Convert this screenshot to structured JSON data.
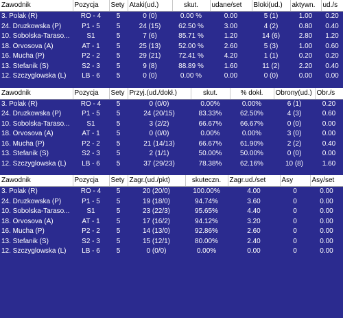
{
  "table1": {
    "headers": [
      "Zawodnik",
      "Pozycja",
      "Sety",
      "Ataki(ud.)",
      "skut.",
      "udane/set",
      "Bloki(ud.)",
      "aktywn.",
      "ud./s"
    ],
    "rows": [
      [
        "3. Polak (R)",
        "RO - 4",
        "5",
        "0 (0)",
        "0.00 %",
        "0.00",
        "5 (1)",
        "1.00",
        "0.20"
      ],
      [
        "24. Druzkowska (P)",
        "P1 - 5",
        "5",
        "24 (15)",
        "62.50 %",
        "3.00",
        "4 (2)",
        "0.80",
        "0.40"
      ],
      [
        "10. Sobolska-Taraso...",
        "S1",
        "5",
        "7 (6)",
        "85.71 %",
        "1.20",
        "14 (6)",
        "2.80",
        "1.20"
      ],
      [
        "18. Orvosova (A)",
        "AT - 1",
        "5",
        "25 (13)",
        "52.00 %",
        "2.60",
        "5 (3)",
        "1.00",
        "0.60"
      ],
      [
        "16. Mucha (P)",
        "P2 - 2",
        "5",
        "29 (21)",
        "72.41 %",
        "4.20",
        "1 (1)",
        "0.20",
        "0.20"
      ],
      [
        "13. Stefanik (S)",
        "S2 - 3",
        "5",
        "9 (8)",
        "88.89 %",
        "1.60",
        "11 (2)",
        "2.20",
        "0.40"
      ],
      [
        "12. Szczyglowska (L)",
        "LB - 6",
        "5",
        "0 (0)",
        "0.00 %",
        "0.00",
        "0 (0)",
        "0.00",
        "0.00"
      ]
    ]
  },
  "table2": {
    "headers": [
      "Zawodnik",
      "Pozycja",
      "Sety",
      "Przyj.(ud./dokł.)",
      "skut.",
      "% dokł.",
      "Obrony(ud.)",
      "Obr./s"
    ],
    "rows": [
      [
        "3. Polak (R)",
        "RO - 4",
        "5",
        "0 (0/0)",
        "0.00%",
        "0.00%",
        "6 (1)",
        "0.20"
      ],
      [
        "24. Druzkowska (P)",
        "P1 - 5",
        "5",
        "24 (20/15)",
        "83.33%",
        "62.50%",
        "4 (3)",
        "0.60"
      ],
      [
        "10. Sobolska-Taraso...",
        "S1",
        "5",
        "3 (2/2)",
        "66.67%",
        "66.67%",
        "0 (0)",
        "0.00"
      ],
      [
        "18. Orvosova (A)",
        "AT - 1",
        "5",
        "0 (0/0)",
        "0.00%",
        "0.00%",
        "3 (0)",
        "0.00"
      ],
      [
        "16. Mucha (P)",
        "P2 - 2",
        "5",
        "21 (14/13)",
        "66.67%",
        "61.90%",
        "2 (2)",
        "0.40"
      ],
      [
        "13. Stefanik (S)",
        "S2 - 3",
        "5",
        "2 (1/1)",
        "50.00%",
        "50.00%",
        "0 (0)",
        "0.00"
      ],
      [
        "12. Szczyglowska (L)",
        "LB - 6",
        "5",
        "37 (29/23)",
        "78.38%",
        "62.16%",
        "10 (8)",
        "1.60"
      ]
    ]
  },
  "table3": {
    "headers": [
      "Zawodnik",
      "Pozycja",
      "Sety",
      "Zagr.(ud./pkt)",
      "skuteczn.",
      "Zagr.ud./set",
      "Asy",
      "Asy/set"
    ],
    "rows": [
      [
        "3. Polak (R)",
        "RO - 4",
        "5",
        "20 (20/0)",
        "100.00%",
        "4.00",
        "0",
        "0.00"
      ],
      [
        "24. Druzkowska (P)",
        "P1 - 5",
        "5",
        "19 (18/0)",
        "94.74%",
        "3.60",
        "0",
        "0.00"
      ],
      [
        "10. Sobolska-Taraso...",
        "S1",
        "5",
        "23 (22/3)",
        "95.65%",
        "4.40",
        "0",
        "0.00"
      ],
      [
        "18. Orvosova (A)",
        "AT - 1",
        "5",
        "17 (16/2)",
        "94.12%",
        "3.20",
        "0",
        "0.00"
      ],
      [
        "16. Mucha (P)",
        "P2 - 2",
        "5",
        "14 (13/0)",
        "92.86%",
        "2.60",
        "0",
        "0.00"
      ],
      [
        "13. Stefanik (S)",
        "S2 - 3",
        "5",
        "15 (12/1)",
        "80.00%",
        "2.40",
        "0",
        "0.00"
      ],
      [
        "12. Szczyglowska (L)",
        "LB - 6",
        "5",
        "0 (0/0)",
        "0.00%",
        "0.00",
        "0",
        "0.00"
      ]
    ]
  }
}
